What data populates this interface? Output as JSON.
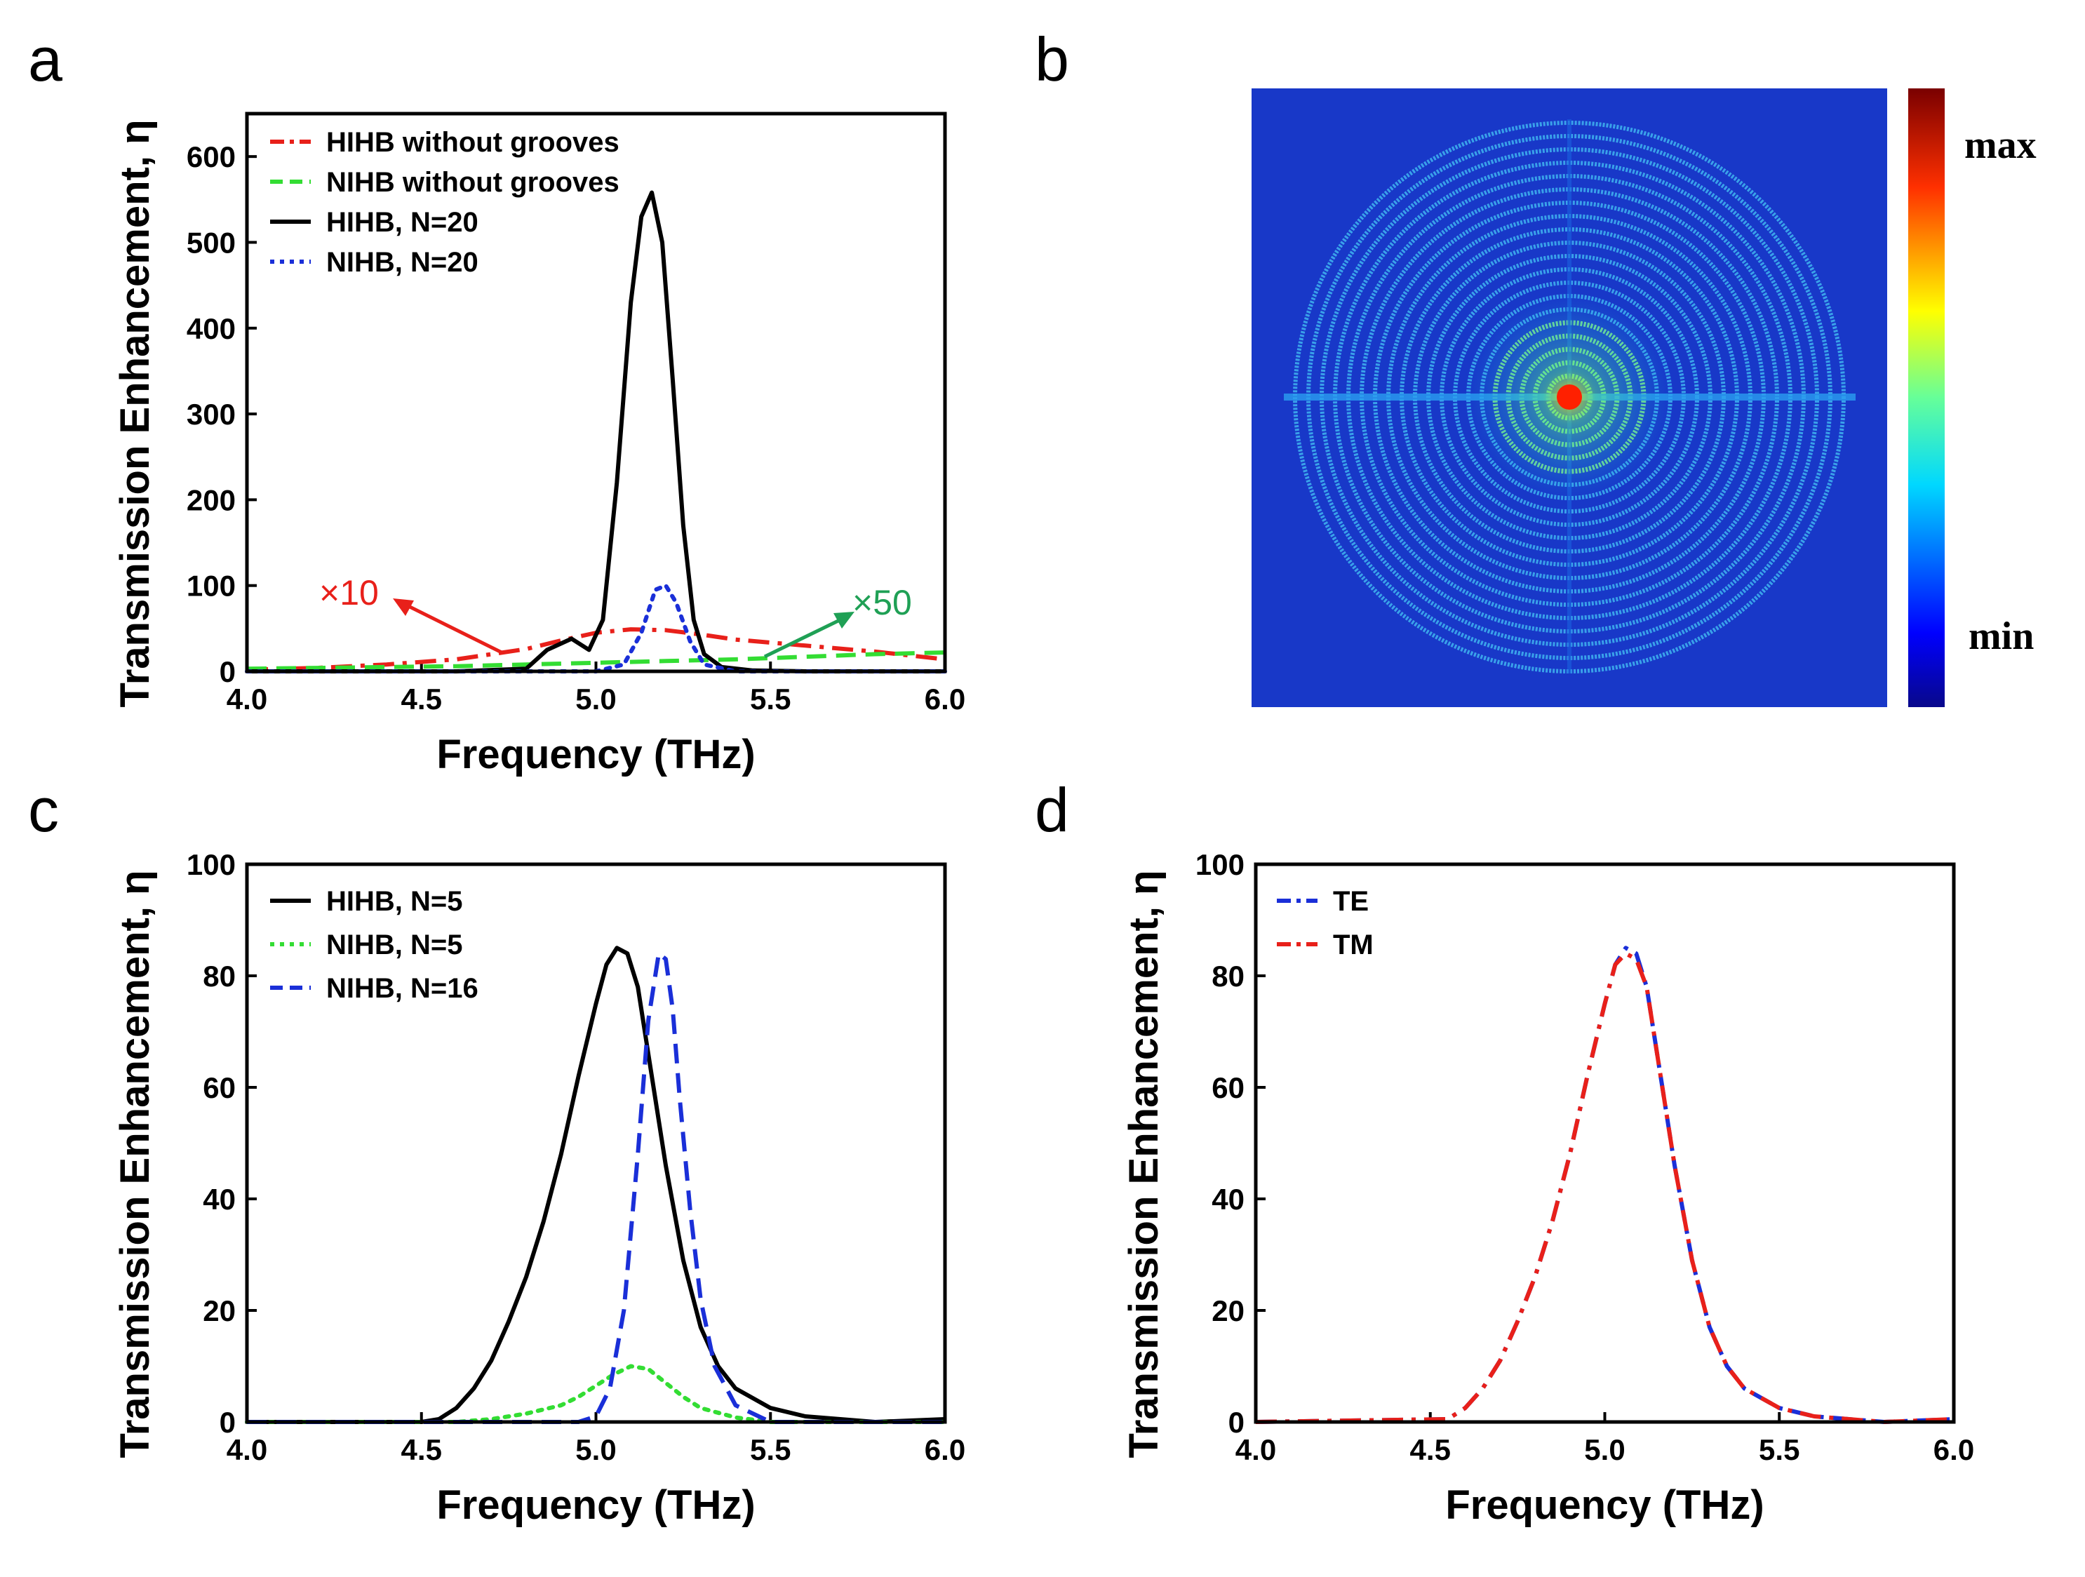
{
  "figure": {
    "panels": {
      "a": {
        "label": "a"
      },
      "b": {
        "label": "b",
        "colorbar": {
          "max_label": "max",
          "min_label": "min"
        }
      },
      "c": {
        "label": "c"
      },
      "d": {
        "label": "d"
      }
    }
  },
  "chart_data": [
    {
      "id": "a",
      "type": "line",
      "xlabel": "Frequency (THz)",
      "ylabel": "Transmission Enhancement, η",
      "xlim": [
        4.0,
        6.0
      ],
      "ylim": [
        0,
        650
      ],
      "xticks": [
        4.0,
        4.5,
        5.0,
        5.5,
        6.0
      ],
      "xtick_labels": [
        "4.0",
        "4.5",
        "5.0",
        "5.5",
        "6.0"
      ],
      "yticks": [
        0,
        100,
        200,
        300,
        400,
        500,
        600
      ],
      "ytick_labels": [
        "0",
        "100",
        "200",
        "300",
        "400",
        "500",
        "600"
      ],
      "legend_position": "top-left",
      "series": [
        {
          "name": "HIHB without grooves",
          "color": "#e8201a",
          "style": "dashdot",
          "x": [
            4.0,
            4.2,
            4.4,
            4.6,
            4.8,
            4.9,
            5.0,
            5.1,
            5.2,
            5.3,
            5.4,
            5.6,
            5.8,
            6.0
          ],
          "y": [
            2,
            4,
            8,
            14,
            26,
            36,
            45,
            49,
            48,
            43,
            37,
            30,
            23,
            14
          ]
        },
        {
          "name": "NIHB without grooves",
          "color": "#33dd33",
          "style": "dashed",
          "x": [
            4.0,
            4.2,
            4.4,
            4.6,
            4.8,
            5.0,
            5.2,
            5.4,
            5.6,
            5.8,
            6.0
          ],
          "y": [
            3,
            4,
            5,
            6,
            8,
            10,
            12,
            14,
            17,
            20,
            22
          ]
        },
        {
          "name": "HIHB, N=20",
          "color": "#000000",
          "style": "solid",
          "x": [
            4.0,
            4.6,
            4.8,
            4.86,
            4.93,
            4.98,
            5.02,
            5.06,
            5.1,
            5.13,
            5.16,
            5.19,
            5.22,
            5.25,
            5.28,
            5.31,
            5.36,
            5.45,
            5.6,
            6.0
          ],
          "y": [
            0,
            0,
            3,
            25,
            38,
            25,
            60,
            220,
            430,
            530,
            558,
            500,
            340,
            170,
            60,
            20,
            5,
            1,
            0,
            0
          ]
        },
        {
          "name": "NIHB, N=20",
          "color": "#1a2fd8",
          "style": "dotted",
          "x": [
            4.0,
            5.0,
            5.08,
            5.13,
            5.17,
            5.2,
            5.23,
            5.27,
            5.31,
            5.4,
            6.0
          ],
          "y": [
            0,
            0,
            8,
            45,
            95,
            100,
            80,
            35,
            8,
            0,
            0
          ]
        }
      ],
      "annotations": [
        {
          "text": "×10",
          "color": "#e8201a"
        },
        {
          "text": "×50",
          "color": "#1fa055"
        }
      ]
    },
    {
      "id": "c",
      "type": "line",
      "xlabel": "Frequency (THz)",
      "ylabel": "Transmission Enhancement, η",
      "xlim": [
        4.0,
        6.0
      ],
      "ylim": [
        0,
        100
      ],
      "xticks": [
        4.0,
        4.5,
        5.0,
        5.5,
        6.0
      ],
      "xtick_labels": [
        "4.0",
        "4.5",
        "5.0",
        "5.5",
        "6.0"
      ],
      "yticks": [
        0,
        20,
        40,
        60,
        80,
        100
      ],
      "ytick_labels": [
        "0",
        "20",
        "40",
        "60",
        "80",
        "100"
      ],
      "legend_position": "top-left",
      "series": [
        {
          "name": "HIHB, N=5",
          "color": "#000000",
          "style": "solid",
          "x": [
            4.0,
            4.5,
            4.55,
            4.6,
            4.65,
            4.7,
            4.75,
            4.8,
            4.85,
            4.9,
            4.95,
            5.0,
            5.03,
            5.06,
            5.09,
            5.12,
            5.15,
            5.2,
            5.25,
            5.3,
            5.35,
            5.4,
            5.5,
            5.6,
            5.8,
            6.0
          ],
          "y": [
            0,
            0,
            0.5,
            2.5,
            6,
            11,
            18,
            26,
            36,
            48,
            62,
            75,
            82,
            85,
            84,
            78,
            66,
            46,
            29,
            17,
            10,
            6,
            2.5,
            1,
            0,
            0.5
          ]
        },
        {
          "name": "NIHB, N=5",
          "color": "#33dd33",
          "style": "dotted",
          "x": [
            4.0,
            4.6,
            4.7,
            4.8,
            4.9,
            4.95,
            5.0,
            5.05,
            5.1,
            5.15,
            5.2,
            5.25,
            5.3,
            5.4,
            5.5,
            6.0
          ],
          "y": [
            0,
            0,
            0.5,
            1.5,
            3,
            4.5,
            6.5,
            8.5,
            10,
            9.5,
            7,
            4.5,
            2.5,
            0.8,
            0,
            0
          ]
        },
        {
          "name": "NIHB, N=16",
          "color": "#1a2fd8",
          "style": "dashed",
          "x": [
            4.0,
            4.95,
            5.0,
            5.04,
            5.08,
            5.12,
            5.15,
            5.18,
            5.2,
            5.22,
            5.24,
            5.27,
            5.3,
            5.34,
            5.4,
            5.5,
            6.0
          ],
          "y": [
            0,
            0,
            1,
            6,
            20,
            48,
            72,
            84,
            83,
            74,
            58,
            38,
            22,
            10,
            3,
            0,
            0
          ]
        }
      ]
    },
    {
      "id": "d",
      "type": "line",
      "xlabel": "Frequency (THz)",
      "ylabel": "Transmission Enhancement, η",
      "xlim": [
        4.0,
        6.0
      ],
      "ylim": [
        0,
        100
      ],
      "xticks": [
        4.0,
        4.5,
        5.0,
        5.5,
        6.0
      ],
      "xtick_labels": [
        "4.0",
        "4.5",
        "5.0",
        "5.5",
        "6.0"
      ],
      "yticks": [
        0,
        20,
        40,
        60,
        80,
        100
      ],
      "ytick_labels": [
        "0",
        "20",
        "40",
        "60",
        "80",
        "100"
      ],
      "legend_position": "top-left",
      "series": [
        {
          "name": "TE",
          "color": "#1a2fd8",
          "style": "dashdot",
          "x": [
            4.0,
            4.55,
            4.6,
            4.65,
            4.7,
            4.75,
            4.8,
            4.85,
            4.9,
            4.95,
            5.0,
            5.03,
            5.06,
            5.09,
            5.12,
            5.15,
            5.2,
            5.25,
            5.3,
            5.35,
            5.4,
            5.5,
            5.6,
            5.8,
            6.0
          ],
          "y": [
            0,
            0.5,
            2.5,
            6,
            11,
            18,
            26,
            36,
            48,
            62,
            75,
            82,
            85,
            84,
            78,
            66,
            46,
            29,
            17,
            10,
            6,
            2.5,
            1,
            0,
            0.5
          ]
        },
        {
          "name": "TM",
          "color": "#e8201a",
          "style": "dashdot",
          "x": [
            4.0,
            4.55,
            4.6,
            4.65,
            4.7,
            4.75,
            4.8,
            4.85,
            4.9,
            4.95,
            5.0,
            5.03,
            5.06,
            5.09,
            5.12,
            5.15,
            5.2,
            5.25,
            5.3,
            5.35,
            5.4,
            5.5,
            5.6,
            5.8,
            6.0
          ],
          "y": [
            0,
            0.5,
            2.5,
            6,
            11,
            18,
            26,
            36,
            48,
            62,
            75,
            82,
            84,
            83,
            78,
            66,
            46,
            29,
            17,
            10,
            6,
            2.5,
            1,
            0,
            0.5
          ]
        }
      ]
    }
  ]
}
